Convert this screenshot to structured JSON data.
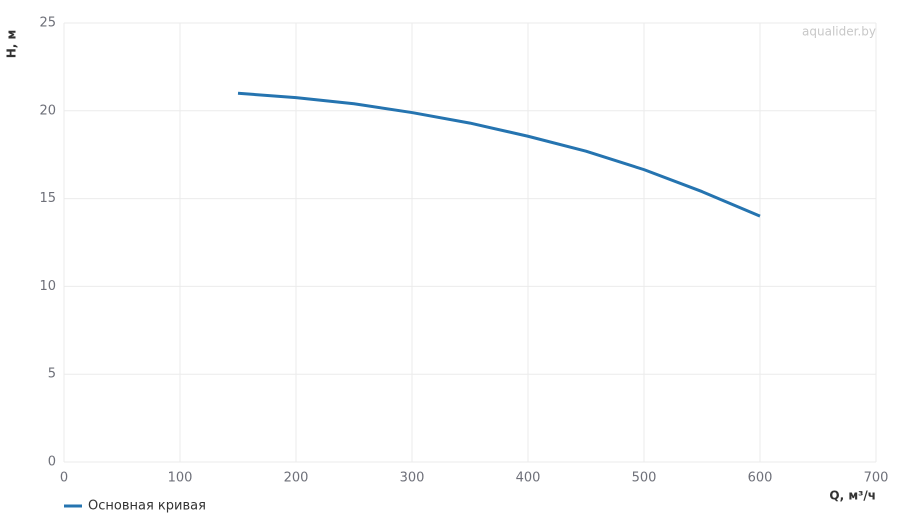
{
  "chart_data": {
    "type": "line",
    "watermark": "aqualider.by",
    "x_label": "Q, м³/ч",
    "y_label": "H, м",
    "x": [
      150,
      200,
      250,
      300,
      350,
      400,
      450,
      500,
      550,
      600
    ],
    "series": [
      {
        "name": "Основная кривая",
        "color": "#2574b0",
        "values": [
          21,
          20.75,
          20.4,
          19.9,
          19.3,
          18.55,
          17.7,
          16.65,
          15.4,
          14
        ]
      }
    ],
    "xlim": [
      0,
      700
    ],
    "xticks": [
      0,
      100,
      200,
      300,
      400,
      500,
      600,
      700
    ],
    "ylim": [
      0,
      25
    ],
    "yticks": [
      0,
      5,
      10,
      15,
      20,
      25
    ],
    "grid": true,
    "legend": "bottom-left"
  }
}
